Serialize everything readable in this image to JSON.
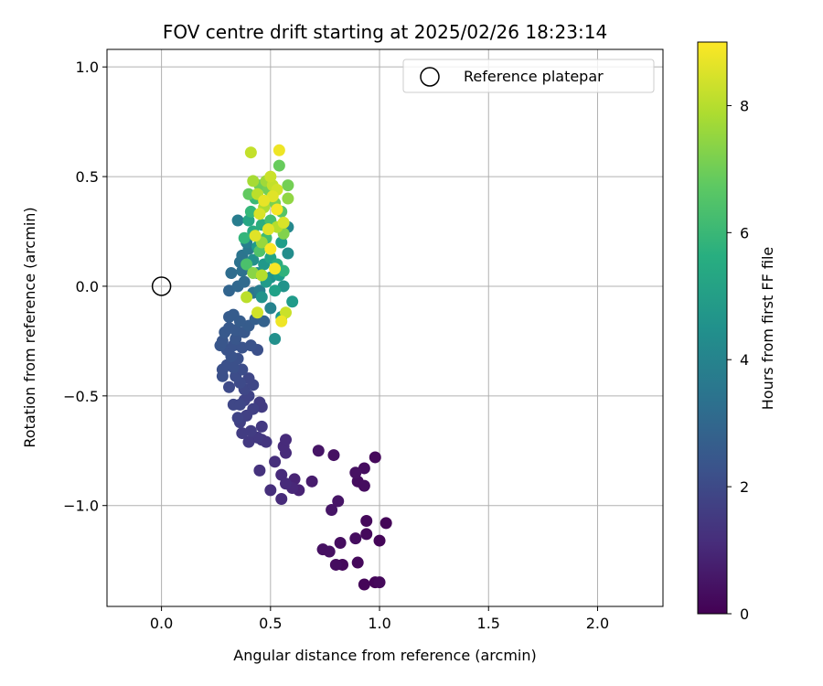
{
  "chart_data": {
    "type": "scatter",
    "title": "FOV centre drift starting at 2025/02/26 18:23:14",
    "xlabel": "Angular distance from reference (arcmin)",
    "ylabel": "Rotation from reference (arcmin)",
    "xlim": [
      -0.25,
      2.3
    ],
    "ylim": [
      -1.46,
      1.08
    ],
    "xticks": [
      0.0,
      0.5,
      1.0,
      1.5,
      2.0
    ],
    "xtick_labels": [
      "0.0",
      "0.5",
      "1.0",
      "1.5",
      "2.0"
    ],
    "yticks": [
      -1.0,
      -0.5,
      0.0,
      0.5,
      1.0
    ],
    "ytick_labels": [
      "−1.0",
      "−0.5",
      "0.0",
      "0.5",
      "1.0"
    ],
    "grid": true,
    "legend": {
      "label": "Reference platepar",
      "placement": "upper right"
    },
    "reference_point": {
      "x": 0.0,
      "y": 0.0
    },
    "colorbar": {
      "label": "Hours from first FF file",
      "colormap": "viridis",
      "range": [
        0,
        9
      ],
      "ticks": [
        0,
        2,
        4,
        6,
        8
      ],
      "tick_labels": [
        "0",
        "2",
        "4",
        "6",
        "8"
      ]
    },
    "points": [
      {
        "x": 0.93,
        "y": -1.36,
        "c": 0.1
      },
      {
        "x": 0.98,
        "y": -1.35,
        "c": 0.1
      },
      {
        "x": 1.0,
        "y": -1.35,
        "c": 0.2
      },
      {
        "x": 0.8,
        "y": -1.27,
        "c": 0.3
      },
      {
        "x": 0.83,
        "y": -1.27,
        "c": 0.2
      },
      {
        "x": 0.9,
        "y": -1.26,
        "c": 0.2
      },
      {
        "x": 0.74,
        "y": -1.2,
        "c": 0.4
      },
      {
        "x": 0.77,
        "y": -1.21,
        "c": 0.4
      },
      {
        "x": 0.82,
        "y": -1.17,
        "c": 0.3
      },
      {
        "x": 0.89,
        "y": -1.15,
        "c": 0.3
      },
      {
        "x": 0.94,
        "y": -1.13,
        "c": 0.2
      },
      {
        "x": 1.0,
        "y": -1.16,
        "c": 0.1
      },
      {
        "x": 0.94,
        "y": -1.07,
        "c": 0.2
      },
      {
        "x": 1.03,
        "y": -1.08,
        "c": 0.1
      },
      {
        "x": 0.78,
        "y": -1.02,
        "c": 0.5
      },
      {
        "x": 0.81,
        "y": -0.98,
        "c": 0.5
      },
      {
        "x": 0.89,
        "y": -0.85,
        "c": 0.4
      },
      {
        "x": 0.93,
        "y": -0.83,
        "c": 0.3
      },
      {
        "x": 0.9,
        "y": -0.89,
        "c": 0.3
      },
      {
        "x": 0.93,
        "y": -0.91,
        "c": 0.3
      },
      {
        "x": 0.98,
        "y": -0.78,
        "c": 0.2
      },
      {
        "x": 0.79,
        "y": -0.77,
        "c": 0.4
      },
      {
        "x": 0.72,
        "y": -0.75,
        "c": 0.5
      },
      {
        "x": 0.69,
        "y": -0.89,
        "c": 0.7
      },
      {
        "x": 0.61,
        "y": -0.88,
        "c": 0.9
      },
      {
        "x": 0.63,
        "y": -0.93,
        "c": 0.9
      },
      {
        "x": 0.6,
        "y": -0.92,
        "c": 1.0
      },
      {
        "x": 0.55,
        "y": -0.97,
        "c": 1.1
      },
      {
        "x": 0.5,
        "y": -0.93,
        "c": 1.2
      },
      {
        "x": 0.55,
        "y": -0.86,
        "c": 1.1
      },
      {
        "x": 0.57,
        "y": -0.9,
        "c": 1.1
      },
      {
        "x": 0.52,
        "y": -0.8,
        "c": 1.2
      },
      {
        "x": 0.57,
        "y": -0.76,
        "c": 1.1
      },
      {
        "x": 0.56,
        "y": -0.73,
        "c": 1.1
      },
      {
        "x": 0.57,
        "y": -0.7,
        "c": 1.1
      },
      {
        "x": 0.45,
        "y": -0.84,
        "c": 1.3
      },
      {
        "x": 0.46,
        "y": -0.7,
        "c": 1.4
      },
      {
        "x": 0.48,
        "y": -0.71,
        "c": 1.4
      },
      {
        "x": 0.44,
        "y": -0.69,
        "c": 1.5
      },
      {
        "x": 0.46,
        "y": -0.64,
        "c": 1.5
      },
      {
        "x": 0.4,
        "y": -0.71,
        "c": 1.5
      },
      {
        "x": 0.37,
        "y": -0.67,
        "c": 1.6
      },
      {
        "x": 0.41,
        "y": -0.66,
        "c": 1.6
      },
      {
        "x": 0.36,
        "y": -0.62,
        "c": 1.7
      },
      {
        "x": 0.39,
        "y": -0.59,
        "c": 1.7
      },
      {
        "x": 0.35,
        "y": -0.6,
        "c": 1.8
      },
      {
        "x": 0.42,
        "y": -0.56,
        "c": 1.7
      },
      {
        "x": 0.46,
        "y": -0.55,
        "c": 1.6
      },
      {
        "x": 0.45,
        "y": -0.53,
        "c": 1.6
      },
      {
        "x": 0.38,
        "y": -0.52,
        "c": 1.8
      },
      {
        "x": 0.33,
        "y": -0.54,
        "c": 1.9
      },
      {
        "x": 0.36,
        "y": -0.54,
        "c": 1.9
      },
      {
        "x": 0.4,
        "y": -0.5,
        "c": 1.8
      },
      {
        "x": 0.38,
        "y": -0.47,
        "c": 1.9
      },
      {
        "x": 0.31,
        "y": -0.46,
        "c": 2.0
      },
      {
        "x": 0.36,
        "y": -0.44,
        "c": 2.0
      },
      {
        "x": 0.42,
        "y": -0.45,
        "c": 1.9
      },
      {
        "x": 0.4,
        "y": -0.42,
        "c": 1.9
      },
      {
        "x": 0.34,
        "y": -0.41,
        "c": 2.1
      },
      {
        "x": 0.28,
        "y": -0.41,
        "c": 2.2
      },
      {
        "x": 0.28,
        "y": -0.38,
        "c": 2.2
      },
      {
        "x": 0.3,
        "y": -0.36,
        "c": 2.2
      },
      {
        "x": 0.33,
        "y": -0.37,
        "c": 2.2
      },
      {
        "x": 0.37,
        "y": -0.38,
        "c": 2.1
      },
      {
        "x": 0.35,
        "y": -0.33,
        "c": 2.2
      },
      {
        "x": 0.32,
        "y": -0.32,
        "c": 2.3
      },
      {
        "x": 0.3,
        "y": -0.29,
        "c": 2.3
      },
      {
        "x": 0.27,
        "y": -0.27,
        "c": 2.4
      },
      {
        "x": 0.28,
        "y": -0.25,
        "c": 2.4
      },
      {
        "x": 0.33,
        "y": -0.27,
        "c": 2.3
      },
      {
        "x": 0.34,
        "y": -0.24,
        "c": 2.4
      },
      {
        "x": 0.37,
        "y": -0.28,
        "c": 2.3
      },
      {
        "x": 0.41,
        "y": -0.27,
        "c": 2.3
      },
      {
        "x": 0.44,
        "y": -0.29,
        "c": 2.2
      },
      {
        "x": 0.29,
        "y": -0.21,
        "c": 2.5
      },
      {
        "x": 0.31,
        "y": -0.19,
        "c": 2.5
      },
      {
        "x": 0.34,
        "y": -0.2,
        "c": 2.5
      },
      {
        "x": 0.38,
        "y": -0.21,
        "c": 2.5
      },
      {
        "x": 0.4,
        "y": -0.18,
        "c": 2.6
      },
      {
        "x": 0.31,
        "y": -0.14,
        "c": 2.6
      },
      {
        "x": 0.33,
        "y": -0.13,
        "c": 2.6
      },
      {
        "x": 0.36,
        "y": -0.16,
        "c": 2.6
      },
      {
        "x": 0.43,
        "y": -0.15,
        "c": 2.7
      },
      {
        "x": 0.47,
        "y": -0.16,
        "c": 2.8
      },
      {
        "x": 0.31,
        "y": -0.02,
        "c": 2.9
      },
      {
        "x": 0.35,
        "y": 0.0,
        "c": 3.0
      },
      {
        "x": 0.38,
        "y": 0.02,
        "c": 3.1
      },
      {
        "x": 0.32,
        "y": 0.06,
        "c": 3.2
      },
      {
        "x": 0.37,
        "y": 0.07,
        "c": 3.3
      },
      {
        "x": 0.36,
        "y": 0.11,
        "c": 3.4
      },
      {
        "x": 0.37,
        "y": 0.14,
        "c": 3.5
      },
      {
        "x": 0.4,
        "y": 0.17,
        "c": 3.6
      },
      {
        "x": 0.35,
        "y": 0.3,
        "c": 3.8
      },
      {
        "x": 0.39,
        "y": 0.2,
        "c": 3.9
      },
      {
        "x": 0.42,
        "y": -0.03,
        "c": 3.5
      },
      {
        "x": 0.45,
        "y": -0.02,
        "c": 3.8
      },
      {
        "x": 0.5,
        "y": -0.1,
        "c": 4.0
      },
      {
        "x": 0.52,
        "y": -0.24,
        "c": 4.5
      },
      {
        "x": 0.55,
        "y": -0.14,
        "c": 4.8
      },
      {
        "x": 0.6,
        "y": -0.07,
        "c": 4.9
      },
      {
        "x": 0.56,
        "y": 0.0,
        "c": 4.6
      },
      {
        "x": 0.58,
        "y": 0.15,
        "c": 4.4
      },
      {
        "x": 0.58,
        "y": 0.27,
        "c": 4.2
      },
      {
        "x": 0.5,
        "y": 0.04,
        "c": 4.6
      },
      {
        "x": 0.48,
        "y": 0.02,
        "c": 4.9
      },
      {
        "x": 0.46,
        "y": -0.05,
        "c": 4.6
      },
      {
        "x": 0.44,
        "y": 0.06,
        "c": 4.3
      },
      {
        "x": 0.52,
        "y": -0.02,
        "c": 5.1
      },
      {
        "x": 0.54,
        "y": 0.05,
        "c": 5.0
      },
      {
        "x": 0.47,
        "y": 0.1,
        "c": 4.8
      },
      {
        "x": 0.5,
        "y": 0.13,
        "c": 5.2
      },
      {
        "x": 0.42,
        "y": 0.12,
        "c": 4.5
      },
      {
        "x": 0.44,
        "y": 0.18,
        "c": 4.9
      },
      {
        "x": 0.55,
        "y": 0.2,
        "c": 5.0
      },
      {
        "x": 0.4,
        "y": 0.3,
        "c": 5.3
      },
      {
        "x": 0.42,
        "y": 0.25,
        "c": 5.5
      },
      {
        "x": 0.46,
        "y": 0.28,
        "c": 5.6
      },
      {
        "x": 0.53,
        "y": 0.1,
        "c": 5.6
      },
      {
        "x": 0.56,
        "y": 0.07,
        "c": 5.8
      },
      {
        "x": 0.38,
        "y": 0.22,
        "c": 5.9
      },
      {
        "x": 0.41,
        "y": 0.34,
        "c": 6.0
      },
      {
        "x": 0.43,
        "y": 0.4,
        "c": 6.1
      },
      {
        "x": 0.48,
        "y": 0.22,
        "c": 6.2
      },
      {
        "x": 0.5,
        "y": 0.3,
        "c": 6.3
      },
      {
        "x": 0.39,
        "y": 0.1,
        "c": 6.4
      },
      {
        "x": 0.45,
        "y": 0.16,
        "c": 6.5
      },
      {
        "x": 0.55,
        "y": 0.34,
        "c": 6.6
      },
      {
        "x": 0.4,
        "y": 0.42,
        "c": 6.8
      },
      {
        "x": 0.45,
        "y": 0.46,
        "c": 7.0
      },
      {
        "x": 0.49,
        "y": 0.44,
        "c": 7.1
      },
      {
        "x": 0.52,
        "y": 0.38,
        "c": 7.2
      },
      {
        "x": 0.56,
        "y": 0.24,
        "c": 7.3
      },
      {
        "x": 0.58,
        "y": 0.46,
        "c": 7.1
      },
      {
        "x": 0.42,
        "y": 0.06,
        "c": 7.4
      },
      {
        "x": 0.46,
        "y": 0.2,
        "c": 7.6
      },
      {
        "x": 0.54,
        "y": 0.55,
        "c": 6.9
      },
      {
        "x": 0.58,
        "y": 0.4,
        "c": 7.5
      },
      {
        "x": 0.48,
        "y": 0.48,
        "c": 7.7
      },
      {
        "x": 0.42,
        "y": 0.48,
        "c": 7.8
      },
      {
        "x": 0.47,
        "y": 0.36,
        "c": 7.9
      },
      {
        "x": 0.53,
        "y": 0.27,
        "c": 8.0
      },
      {
        "x": 0.44,
        "y": 0.42,
        "c": 8.1
      },
      {
        "x": 0.51,
        "y": 0.46,
        "c": 8.2
      },
      {
        "x": 0.5,
        "y": 0.5,
        "c": 8.3
      },
      {
        "x": 0.53,
        "y": 0.44,
        "c": 8.4
      },
      {
        "x": 0.45,
        "y": 0.33,
        "c": 8.5
      },
      {
        "x": 0.49,
        "y": 0.26,
        "c": 8.6
      },
      {
        "x": 0.56,
        "y": 0.29,
        "c": 8.5
      },
      {
        "x": 0.41,
        "y": 0.61,
        "c": 8.2
      },
      {
        "x": 0.54,
        "y": 0.62,
        "c": 8.8
      },
      {
        "x": 0.46,
        "y": 0.05,
        "c": 8.0
      },
      {
        "x": 0.57,
        "y": -0.12,
        "c": 8.3
      },
      {
        "x": 0.55,
        "y": -0.16,
        "c": 8.8
      },
      {
        "x": 0.44,
        "y": -0.12,
        "c": 8.4
      },
      {
        "x": 0.39,
        "y": -0.05,
        "c": 8.1
      },
      {
        "x": 0.52,
        "y": 0.08,
        "c": 8.9
      },
      {
        "x": 0.5,
        "y": 0.17,
        "c": 9.0
      },
      {
        "x": 0.53,
        "y": 0.35,
        "c": 8.9
      },
      {
        "x": 0.43,
        "y": 0.23,
        "c": 8.6
      },
      {
        "x": 0.47,
        "y": 0.39,
        "c": 8.7
      },
      {
        "x": 0.51,
        "y": 0.41,
        "c": 8.6
      }
    ]
  }
}
